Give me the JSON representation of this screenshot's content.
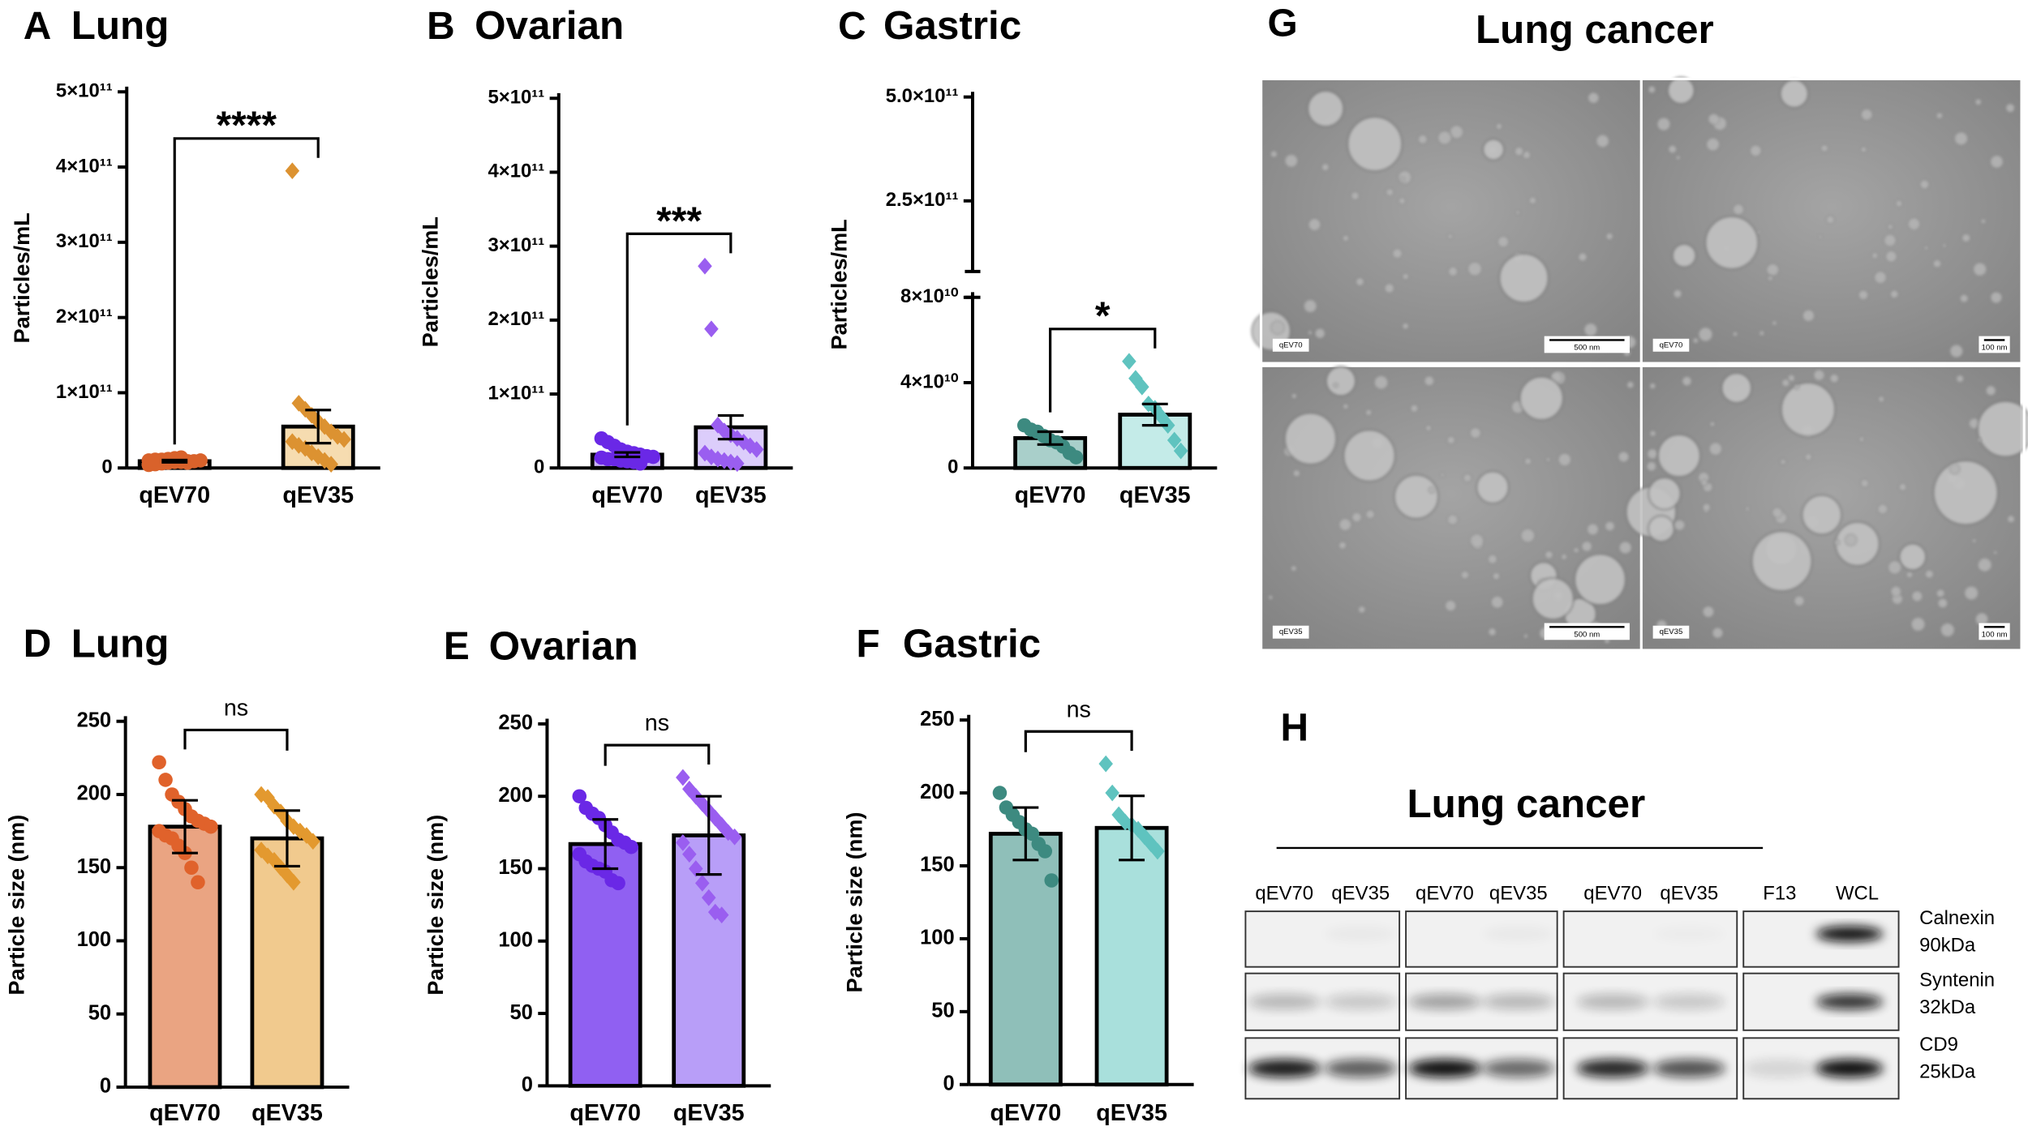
{
  "chart_data": [
    {
      "type": "bar",
      "panel": "A",
      "title": "Lung",
      "y_label": "Particles/mL",
      "categories": [
        "qEV70",
        "qEV35"
      ],
      "annotation": "****",
      "ylim": [
        0,
        500000000000
      ],
      "yticks": [
        0,
        {
          "value": 100000000000,
          "label": "1×10¹¹"
        },
        {
          "value": 200000000000,
          "label": "2×10¹¹"
        },
        {
          "value": 300000000000,
          "label": "3×10¹¹"
        },
        {
          "value": 400000000000,
          "label": "4×10¹¹"
        },
        {
          "value": 500000000000,
          "label": "5×10¹¹"
        }
      ],
      "groups": [
        {
          "marker": "circle",
          "color": "#d9622b",
          "fill": "#f3c6ad",
          "mean": 9000000000,
          "error": 1500000000,
          "points": [
            4000000000,
            5000000000,
            6000000000,
            7000000000,
            8000000000,
            8000000000,
            9000000000,
            9000000000,
            10000000000,
            10000000000,
            11000000000,
            11000000000,
            12000000000,
            13000000000,
            14000000000,
            7000000000
          ]
        },
        {
          "marker": "diamond",
          "color": "#dc9231",
          "fill": "#f6dcb0",
          "mean": 55000000000,
          "error": 22000000000,
          "points": [
            395000000000,
            86000000000,
            78000000000,
            70000000000,
            62000000000,
            55000000000,
            48000000000,
            42000000000,
            38000000000,
            35000000000,
            30000000000,
            26000000000,
            20000000000,
            15000000000,
            10000000000,
            5000000000
          ]
        }
      ]
    },
    {
      "type": "bar",
      "panel": "B",
      "title": "Ovarian",
      "y_label": "Particles/mL",
      "categories": [
        "qEV70",
        "qEV35"
      ],
      "annotation": "***",
      "ylim": [
        0,
        500000000000
      ],
      "yticks": [
        0,
        {
          "value": 100000000000,
          "label": "1×10¹¹"
        },
        {
          "value": 200000000000,
          "label": "2×10¹¹"
        },
        {
          "value": 300000000000,
          "label": "3×10¹¹"
        },
        {
          "value": 400000000000,
          "label": "4×10¹¹"
        },
        {
          "value": 500000000000,
          "label": "5×10¹¹"
        }
      ],
      "groups": [
        {
          "marker": "circle",
          "color": "#6a28e6",
          "fill": "#c8b2f6",
          "mean": 18000000000,
          "error": 3000000000,
          "points": [
            40000000000,
            35000000000,
            30000000000,
            25000000000,
            22000000000,
            20000000000,
            18000000000,
            16000000000,
            15000000000,
            14000000000,
            12000000000,
            12000000000,
            10000000000,
            9000000000,
            8000000000,
            6000000000
          ]
        },
        {
          "marker": "diamond",
          "color": "#9a5ef0",
          "fill": "#dccdfb",
          "mean": 55000000000,
          "error": 16000000000,
          "points": [
            273000000000,
            188000000000,
            58000000000,
            50000000000,
            45000000000,
            40000000000,
            35000000000,
            30000000000,
            25000000000,
            20000000000,
            15000000000,
            12000000000,
            10000000000,
            8000000000,
            6000000000
          ]
        }
      ]
    },
    {
      "type": "bar",
      "panel": "C",
      "title": "Gastric",
      "y_label": "Particles/mL",
      "categories": [
        "qEV70",
        "qEV35"
      ],
      "annotation": "*",
      "ylim": [
        0,
        80000000000
      ],
      "yticks": [
        0,
        {
          "value": 40000000000,
          "label": "4×10¹⁰"
        },
        {
          "value": 80000000000,
          "label": "8×10¹⁰"
        }
      ],
      "ylim_upper": [
        80000000000,
        500000000000
      ],
      "yticks_upper": [
        {
          "value": 250000000000,
          "label": "2.5×10¹¹"
        },
        {
          "value": 500000000000,
          "label": "5.0×10¹¹"
        }
      ],
      "groups": [
        {
          "marker": "circle",
          "color": "#3d8a80",
          "fill": "#a9cfca",
          "mean": 14000000000,
          "error": 3000000000,
          "points": [
            20000000000,
            18000000000,
            17000000000,
            15000000000,
            13000000000,
            12000000000,
            10000000000,
            7000000000,
            5000000000
          ]
        },
        {
          "marker": "diamond",
          "color": "#5fc3bf",
          "fill": "#c4ebe8",
          "mean": 25000000000,
          "error": 5000000000,
          "points": [
            50000000000,
            42000000000,
            38000000000,
            30000000000,
            28000000000,
            24000000000,
            20000000000,
            13000000000,
            8000000000
          ]
        }
      ]
    },
    {
      "type": "bar",
      "panel": "D",
      "title": "Lung",
      "y_label": "Particle size (nm)",
      "categories": [
        "qEV70",
        "qEV35"
      ],
      "annotation": "ns",
      "ylim": [
        0,
        250
      ],
      "yticks": [
        0,
        50,
        100,
        150,
        200,
        250
      ],
      "groups": [
        {
          "marker": "circle",
          "color": "#e0622b",
          "fill": "#eaa482",
          "mean": 178,
          "error": 18,
          "points": [
            222,
            210,
            200,
            195,
            190,
            185,
            182,
            180,
            178,
            175,
            172,
            170,
            165,
            160,
            150,
            140
          ]
        },
        {
          "marker": "diamond",
          "color": "#e3992f",
          "fill": "#f1ca8e",
          "mean": 170,
          "error": 19,
          "points": [
            200,
            198,
            192,
            188,
            182,
            178,
            175,
            172,
            168,
            162,
            158,
            155,
            150,
            145,
            140
          ]
        }
      ]
    },
    {
      "type": "bar",
      "panel": "E",
      "title": "Ovarian",
      "y_label": "Particle size (nm)",
      "categories": [
        "qEV70",
        "qEV35"
      ],
      "annotation": "ns",
      "ylim": [
        0,
        250
      ],
      "yticks": [
        0,
        50,
        100,
        150,
        200,
        250
      ],
      "groups": [
        {
          "marker": "circle",
          "color": "#6a28e6",
          "fill": "#9060f2",
          "mean": 167,
          "error": 17,
          "points": [
            200,
            192,
            188,
            185,
            180,
            175,
            170,
            168,
            165,
            160,
            155,
            152,
            150,
            148,
            142,
            140
          ]
        },
        {
          "marker": "diamond",
          "color": "#9a5ef0",
          "fill": "#b89ef8",
          "mean": 173,
          "error": 27,
          "points": [
            213,
            205,
            200,
            195,
            190,
            185,
            180,
            175,
            172,
            168,
            160,
            150,
            140,
            130,
            120,
            118
          ]
        }
      ]
    },
    {
      "type": "bar",
      "panel": "F",
      "title": "Gastric",
      "y_label": "Particle size (nm)",
      "categories": [
        "qEV70",
        "qEV35"
      ],
      "annotation": "ns",
      "ylim": [
        0,
        250
      ],
      "yticks": [
        0,
        50,
        100,
        150,
        200,
        250
      ],
      "groups": [
        {
          "marker": "circle",
          "color": "#3d8a80",
          "fill": "#8fbfb9",
          "mean": 172,
          "error": 18,
          "points": [
            200,
            190,
            185,
            180,
            175,
            172,
            165,
            160,
            140
          ]
        },
        {
          "marker": "diamond",
          "color": "#5fc3bf",
          "fill": "#a9e0dc",
          "mean": 176,
          "error": 22,
          "points": [
            220,
            200,
            185,
            180,
            178,
            175,
            170,
            165,
            160
          ]
        }
      ]
    }
  ],
  "micrographs": {
    "panel": "G",
    "title": "Lung cancer",
    "images": [
      {
        "sample": "qEV70",
        "scale": "500 nm"
      },
      {
        "sample": "qEV70",
        "scale": "100 nm"
      },
      {
        "sample": "qEV35",
        "scale": "500 nm"
      },
      {
        "sample": "qEV35",
        "scale": "100 nm"
      }
    ]
  },
  "blot": {
    "panel": "H",
    "title": "Lung cancer",
    "lanes": [
      "qEV70",
      "qEV35",
      "qEV70",
      "qEV35",
      "qEV70",
      "qEV35",
      "F13",
      "WCL"
    ],
    "markers": [
      {
        "protein": "Calnexin",
        "size": "90kDa"
      },
      {
        "protein": "Syntenin",
        "size": "32kDa"
      },
      {
        "protein": "CD9",
        "size": "25kDa"
      }
    ]
  }
}
